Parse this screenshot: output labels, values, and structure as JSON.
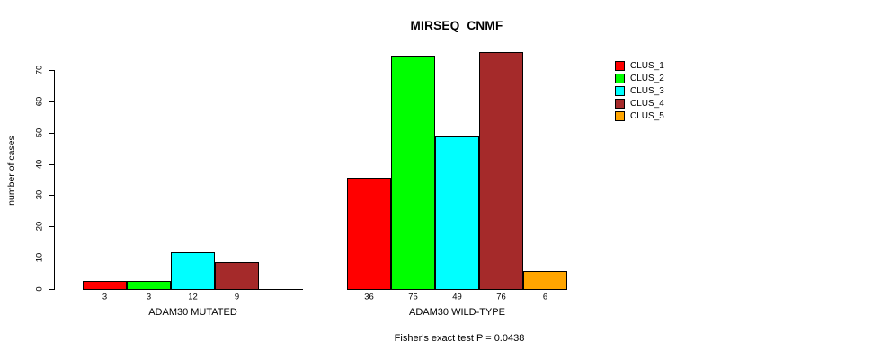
{
  "chart_data": {
    "type": "bar",
    "title": "MIRSEQ_CNMF",
    "ylabel": "number of cases",
    "xlabel": "",
    "ylim": [
      0,
      70
    ],
    "yticks": [
      0,
      10,
      20,
      30,
      40,
      50,
      60,
      70
    ],
    "grid": false,
    "legend_position": "right",
    "series": [
      {
        "name": "CLUS_1",
        "color": "#FF0000"
      },
      {
        "name": "CLUS_2",
        "color": "#00FF00"
      },
      {
        "name": "CLUS_3",
        "color": "#00FFFF"
      },
      {
        "name": "CLUS_4",
        "color": "#A52A2A"
      },
      {
        "name": "CLUS_5",
        "color": "#FFA500"
      }
    ],
    "categories": [
      "ADAM30 MUTATED",
      "ADAM30 WILD-TYPE"
    ],
    "groups": [
      {
        "label": "ADAM30 MUTATED",
        "values": [
          3,
          3,
          12,
          9,
          0
        ],
        "bar_labels": [
          "3",
          "3",
          "12",
          "9",
          ""
        ]
      },
      {
        "label": "ADAM30 WILD-TYPE",
        "values": [
          36,
          75,
          49,
          76,
          6
        ],
        "bar_labels": [
          "36",
          "75",
          "49",
          "76",
          "6"
        ]
      }
    ],
    "footnote": "Fisher's exact test P = 0.0438"
  }
}
